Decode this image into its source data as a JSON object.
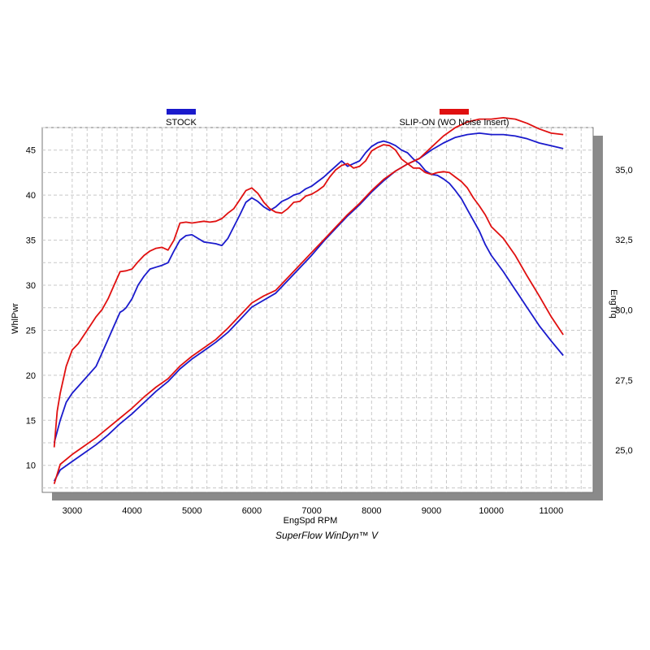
{
  "chart_data": {
    "type": "line",
    "footer": "SuperFlow WinDyn™ V",
    "xlabel": "EngSpd  RPM",
    "ylabel_left": "WhlPwr",
    "ylabel_right": "EngTrq",
    "xlim": [
      2500,
      11700
    ],
    "ylim_left": [
      7,
      47.5
    ],
    "ylim_right": [
      23.5,
      36.5
    ],
    "x_ticks": [
      3000,
      4000,
      5000,
      6000,
      7000,
      8000,
      9000,
      10000,
      11000
    ],
    "y_left_ticks": [
      10,
      15,
      20,
      25,
      30,
      35,
      40,
      45
    ],
    "y_right_ticks": [
      25.0,
      27.5,
      30.0,
      32.5,
      35.0
    ],
    "y_right_tick_labels": [
      "25,0",
      "27,5",
      "30,0",
      "32,5",
      "35,0"
    ],
    "grid": true,
    "legend": [
      {
        "label": "STOCK",
        "color": "#1a1acc"
      },
      {
        "label": "SLIP-ON (WO Noise Insert)",
        "color": "#e01010"
      }
    ],
    "series": [
      {
        "name": "STOCK",
        "metric": "WhlPwr",
        "axis": "left",
        "color": "#1a1acc",
        "x": [
          2700,
          2800,
          2900,
          3000,
          3200,
          3400,
          3500,
          3600,
          3700,
          3800,
          3850,
          3900,
          4000,
          4100,
          4200,
          4300,
          4400,
          4500,
          4600,
          4700,
          4800,
          4900,
          5000,
          5100,
          5200,
          5300,
          5400,
          5500,
          5600,
          5700,
          5800,
          5900,
          6000,
          6100,
          6200,
          6300,
          6400,
          6500,
          6600,
          6700,
          6800,
          6900,
          7000,
          7100,
          7200,
          7300,
          7400,
          7500,
          7600,
          7700,
          7800,
          7900,
          8000,
          8100,
          8200,
          8300,
          8400,
          8500,
          8600,
          8700,
          8800,
          8900,
          9000,
          9100,
          9200,
          9300,
          9400,
          9500,
          9600,
          9700,
          9800,
          9900,
          10000,
          10200,
          10400,
          10600,
          10800,
          11000,
          11200
        ],
        "y": [
          12.5,
          15,
          17,
          18,
          19.5,
          21,
          22.5,
          24,
          25.5,
          27,
          27.2,
          27.5,
          28.5,
          30,
          31,
          31.8,
          32,
          32.2,
          32.5,
          33.8,
          35,
          35.5,
          35.6,
          35.2,
          34.8,
          34.7,
          34.6,
          34.4,
          35.2,
          36.5,
          37.8,
          39.2,
          39.7,
          39.3,
          38.7,
          38.3,
          38.7,
          39.3,
          39.6,
          40,
          40.2,
          40.7,
          41,
          41.5,
          42,
          42.6,
          43.2,
          43.8,
          43.2,
          43.5,
          43.8,
          44.7,
          45.4,
          45.8,
          46,
          45.8,
          45.5,
          45,
          44.7,
          44,
          43.5,
          42.7,
          42.3,
          42.2,
          41.8,
          41.3,
          40.5,
          39.6,
          38.4,
          37.2,
          36,
          34.5,
          33.3,
          31.5,
          29.5,
          27.5,
          25.5,
          23.8,
          22.2
        ]
      },
      {
        "name": "SLIP-ON (WO Noise Insert)",
        "metric": "WhlPwr",
        "axis": "left",
        "color": "#e01010",
        "x": [
          2700,
          2750,
          2800,
          2900,
          3000,
          3100,
          3200,
          3300,
          3400,
          3500,
          3600,
          3700,
          3800,
          3900,
          4000,
          4100,
          4200,
          4300,
          4400,
          4500,
          4600,
          4700,
          4800,
          4900,
          5000,
          5100,
          5200,
          5300,
          5400,
          5500,
          5600,
          5700,
          5800,
          5900,
          6000,
          6100,
          6200,
          6300,
          6400,
          6500,
          6600,
          6700,
          6800,
          6900,
          7000,
          7100,
          7200,
          7300,
          7400,
          7500,
          7600,
          7700,
          7800,
          7900,
          8000,
          8100,
          8200,
          8300,
          8400,
          8500,
          8600,
          8700,
          8800,
          8900,
          9000,
          9100,
          9200,
          9300,
          9400,
          9500,
          9600,
          9700,
          9800,
          9900,
          10000,
          10200,
          10400,
          10600,
          10800,
          11000,
          11200
        ],
        "y": [
          12,
          16,
          18,
          21,
          22.8,
          23.5,
          24.5,
          25.5,
          26.5,
          27.3,
          28.5,
          30,
          31.5,
          31.6,
          31.8,
          32.6,
          33.3,
          33.8,
          34.1,
          34.2,
          33.9,
          35,
          36.9,
          37,
          36.9,
          37,
          37.1,
          37,
          37.1,
          37.4,
          38,
          38.5,
          39.5,
          40.5,
          40.8,
          40.2,
          39.2,
          38.5,
          38.1,
          38,
          38.5,
          39.2,
          39.3,
          39.9,
          40.1,
          40.5,
          41,
          42,
          42.8,
          43.3,
          43.5,
          43,
          43.2,
          43.8,
          44.9,
          45.3,
          45.6,
          45.5,
          45,
          44,
          43.5,
          43,
          43,
          42.5,
          42.3,
          42.5,
          42.6,
          42.5,
          42,
          41.5,
          40.8,
          39.7,
          38.8,
          37.8,
          36.5,
          35.2,
          33.3,
          31,
          28.8,
          26.5,
          24.5
        ]
      },
      {
        "name": "STOCK",
        "metric": "EngTrq",
        "axis": "right",
        "color": "#1a1acc",
        "x": [
          2700,
          2800,
          3000,
          3200,
          3400,
          3600,
          3800,
          4000,
          4200,
          4400,
          4600,
          4800,
          5000,
          5200,
          5400,
          5600,
          5800,
          6000,
          6200,
          6400,
          6600,
          6800,
          7000,
          7200,
          7400,
          7600,
          7800,
          8000,
          8200,
          8400,
          8600,
          8800,
          9000,
          9200,
          9400,
          9600,
          9800,
          10000,
          10200,
          10400,
          10600,
          10800,
          11000,
          11200
        ],
        "y": [
          23.9,
          24.3,
          24.6,
          24.9,
          25.2,
          25.55,
          25.95,
          26.3,
          26.7,
          27.1,
          27.45,
          27.9,
          28.25,
          28.55,
          28.85,
          29.2,
          29.65,
          30.1,
          30.35,
          30.6,
          31.05,
          31.5,
          31.95,
          32.45,
          32.9,
          33.35,
          33.75,
          34.2,
          34.6,
          34.95,
          35.2,
          35.4,
          35.7,
          35.95,
          36.15,
          36.25,
          36.3,
          36.25,
          36.25,
          36.2,
          36.1,
          35.95,
          35.85,
          35.75
        ]
      },
      {
        "name": "SLIP-ON (WO Noise Insert)",
        "metric": "EngTrq",
        "axis": "right",
        "color": "#e01010",
        "x": [
          2700,
          2800,
          3000,
          3200,
          3400,
          3600,
          3800,
          4000,
          4200,
          4400,
          4600,
          4800,
          5000,
          5200,
          5400,
          5600,
          5800,
          6000,
          6200,
          6400,
          6600,
          6800,
          7000,
          7200,
          7400,
          7600,
          7800,
          8000,
          8200,
          8400,
          8600,
          8800,
          9000,
          9200,
          9400,
          9600,
          9800,
          10000,
          10200,
          10400,
          10600,
          10800,
          11000,
          11200
        ],
        "y": [
          23.8,
          24.5,
          24.85,
          25.15,
          25.45,
          25.8,
          26.15,
          26.5,
          26.9,
          27.25,
          27.55,
          28.0,
          28.35,
          28.65,
          28.95,
          29.35,
          29.8,
          30.25,
          30.5,
          30.7,
          31.15,
          31.6,
          32.05,
          32.5,
          32.95,
          33.4,
          33.8,
          34.25,
          34.65,
          34.95,
          35.2,
          35.4,
          35.8,
          36.2,
          36.5,
          36.7,
          36.8,
          36.8,
          36.85,
          36.8,
          36.65,
          36.45,
          36.3,
          36.25
        ]
      }
    ]
  }
}
